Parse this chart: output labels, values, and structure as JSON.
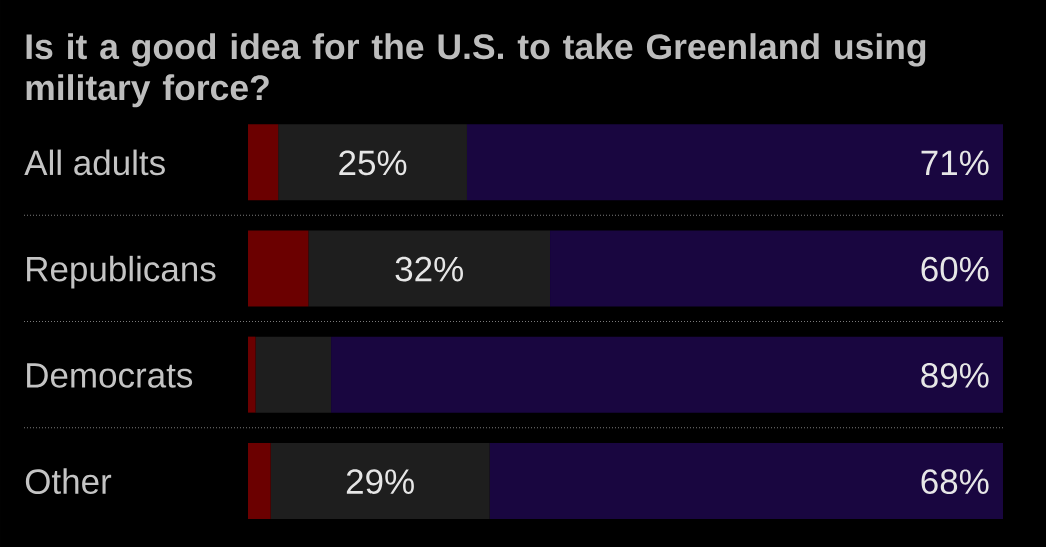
{
  "chart_data": {
    "type": "bar",
    "orientation": "horizontal",
    "stacked": true,
    "title": "Is it a good idea for the U.S. to take Greenland using military force?",
    "categories": [
      "All adults",
      "Republicans",
      "Democrats",
      "Other"
    ],
    "series": [
      {
        "color": "#6b0000",
        "values": [
          4,
          8,
          1,
          3
        ]
      },
      {
        "color": "#1e1e1e",
        "values": [
          25,
          32,
          10,
          29
        ],
        "value_labels": [
          "25%",
          "32%",
          null,
          "29%"
        ]
      },
      {
        "color": "#190640",
        "values": [
          71,
          60,
          89,
          68
        ],
        "value_labels": [
          "71%",
          "60%",
          "89%",
          "68%"
        ]
      }
    ],
    "xlim": [
      0,
      100
    ],
    "tick_labels": "y",
    "grid": "y"
  }
}
